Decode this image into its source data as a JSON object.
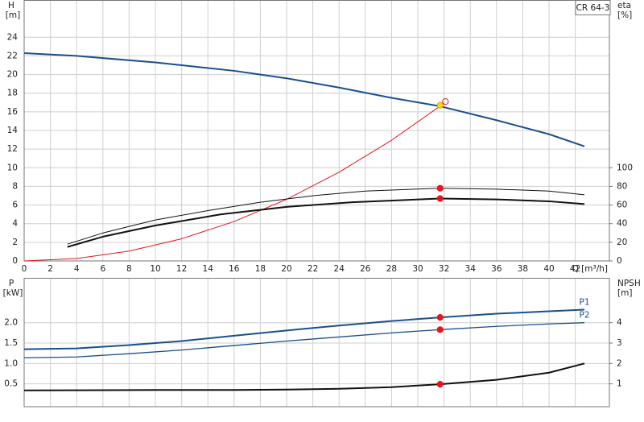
{
  "chart_data": [
    {
      "type": "line",
      "title": "CR 64-3",
      "ylabel": "H",
      "yunit": "[m]",
      "y2label": "eta",
      "y2unit": "[%]",
      "xlabel": "Q [m³/h]",
      "xlim": [
        0,
        44.6
      ],
      "xticks": [
        0,
        2,
        4,
        6,
        8,
        10,
        12,
        14,
        16,
        18,
        20,
        22,
        24,
        26,
        28,
        30,
        32,
        34,
        36,
        38,
        40,
        42
      ],
      "xtick_labels": true,
      "ylim": [
        0,
        28
      ],
      "yticks": [
        0,
        2,
        4,
        6,
        8,
        10,
        12,
        14,
        16,
        18,
        20,
        22,
        24
      ],
      "y2lim": [
        0,
        280
      ],
      "y2ticks": [
        0,
        20,
        40,
        60,
        80,
        100
      ],
      "grid": true,
      "series": [
        {
          "color": "#1a4f8f",
          "width": 2,
          "axis": "y",
          "x": [
            0,
            4,
            10,
            16,
            20,
            24,
            28,
            31.7,
            36,
            40,
            42.7
          ],
          "values": [
            22.3,
            22.0,
            21.3,
            20.4,
            19.6,
            18.6,
            17.5,
            16.6,
            15.1,
            13.6,
            12.3
          ]
        },
        {
          "color": "#e8141c",
          "width": 1,
          "axis": "y",
          "x": [
            0,
            4,
            8,
            12,
            16,
            20,
            24,
            28,
            32
          ],
          "values": [
            0,
            0.26,
            1.06,
            2.38,
            4.23,
            6.61,
            9.52,
            12.95,
            16.91
          ]
        },
        {
          "color": "#111111",
          "width": 1,
          "axis": "y2",
          "x": [
            3.3,
            6,
            10,
            14,
            18,
            22,
            26,
            31.7,
            36,
            40,
            42.7
          ],
          "values": [
            18,
            30,
            44,
            54,
            63,
            70,
            75,
            78,
            77,
            75,
            71
          ]
        },
        {
          "color": "#111111",
          "width": 2,
          "axis": "y2",
          "x": [
            3.3,
            6,
            10,
            15,
            20,
            25,
            31.7,
            36,
            40,
            42.7
          ],
          "values": [
            15,
            26,
            38,
            50,
            58,
            63,
            67,
            66,
            64,
            61
          ]
        }
      ],
      "duty_points": [
        {
          "x": 32.1,
          "y": 17.1,
          "axis": "y",
          "color": "#e8141c",
          "fill": "none"
        },
        {
          "x": 31.7,
          "y": 16.7,
          "axis": "y",
          "color": "#e89a00",
          "fill": "#f5d818"
        },
        {
          "x": 31.7,
          "y": 78,
          "axis": "y2",
          "color": "#e8141c",
          "fill": "#e8141c"
        },
        {
          "x": 31.7,
          "y": 67,
          "axis": "y2",
          "color": "#e8141c",
          "fill": "#e8141c"
        }
      ]
    },
    {
      "type": "line",
      "ylabel": "P",
      "yunit": "[kW]",
      "y2label": "NPSH",
      "y2unit": "[m]",
      "xlim": [
        0,
        44.6
      ],
      "xticks": [
        0,
        2,
        4,
        6,
        8,
        10,
        12,
        14,
        16,
        18,
        20,
        22,
        24,
        26,
        28,
        30,
        32,
        34,
        36,
        38,
        40,
        42
      ],
      "xtick_labels": false,
      "ylim": [
        -0.06,
        3.1
      ],
      "yticks": [
        0.5,
        {
          "value": 1,
          "label": "1.0"
        },
        1.5,
        {
          "value": 2,
          "label": "2.0"
        }
      ],
      "y2lim": [
        -0.12,
        6.2
      ],
      "y2ticks": [
        1,
        2,
        3,
        4
      ],
      "grid": true,
      "series": [
        {
          "name": "P1",
          "color": "#1a4f8f",
          "width": 2,
          "axis": "y",
          "x": [
            0,
            4,
            8,
            12,
            16,
            20,
            24,
            28,
            31.7,
            36,
            40,
            42.7
          ],
          "values": [
            1.35,
            1.37,
            1.45,
            1.55,
            1.68,
            1.81,
            1.93,
            2.04,
            2.13,
            2.22,
            2.28,
            2.32
          ]
        },
        {
          "name": "P2",
          "color": "#1a4f8f",
          "width": 1.3,
          "axis": "y",
          "x": [
            0,
            4,
            8,
            12,
            16,
            20,
            24,
            28,
            31.7,
            36,
            40,
            42.7
          ],
          "values": [
            1.14,
            1.16,
            1.24,
            1.33,
            1.44,
            1.55,
            1.65,
            1.75,
            1.83,
            1.91,
            1.97,
            2.0
          ]
        },
        {
          "color": "#111111",
          "width": 2,
          "axis": "y2",
          "x": [
            0,
            10,
            16,
            20,
            24,
            28,
            31.7,
            36,
            40,
            42.7
          ],
          "values": [
            0.68,
            0.7,
            0.7,
            0.72,
            0.76,
            0.84,
            0.98,
            1.2,
            1.55,
            2.0
          ]
        }
      ],
      "duty_points": [
        {
          "x": 31.7,
          "y": 2.13,
          "axis": "y",
          "color": "#e8141c",
          "fill": "#e8141c"
        },
        {
          "x": 31.7,
          "y": 1.83,
          "axis": "y",
          "color": "#e8141c",
          "fill": "#e8141c"
        },
        {
          "x": 31.7,
          "y": 0.98,
          "axis": "y2",
          "color": "#e8141c",
          "fill": "#e8141c"
        }
      ]
    }
  ]
}
